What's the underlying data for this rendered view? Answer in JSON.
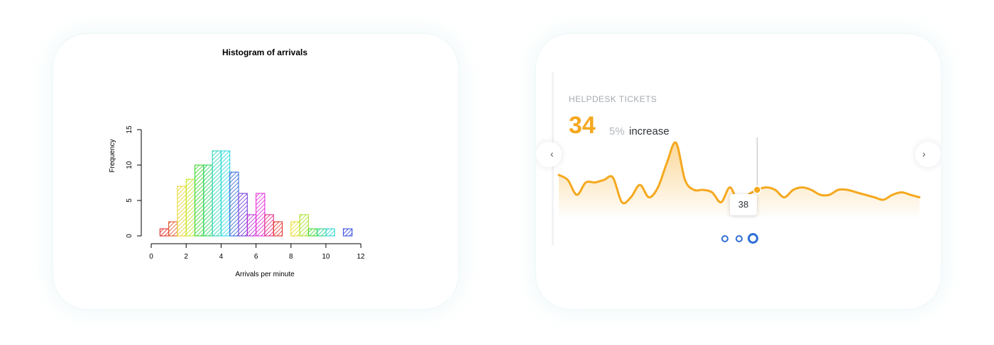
{
  "histogram": {
    "title": "Histogram of arrivals",
    "xlabel": "Arrivals per minute",
    "ylabel": "Frequency",
    "x_ticks": [
      "0",
      "2",
      "4",
      "6",
      "8",
      "10",
      "12"
    ],
    "y_ticks": [
      "0",
      "5",
      "10",
      "15"
    ]
  },
  "widget": {
    "title": "HELPDESK TICKETS",
    "value": "34",
    "change_pct": "5%",
    "change_text": "increase",
    "tooltip_value": "38",
    "pager_count": 3,
    "pager_active_index": 2,
    "accent_color": "#f5a81e"
  },
  "chart_data": [
    {
      "type": "bar",
      "title": "Histogram of arrivals",
      "xlabel": "Arrivals per minute",
      "ylabel": "Frequency",
      "bin_width": 0.5,
      "bins": [
        [
          0.5,
          1.0
        ],
        [
          1.0,
          1.5
        ],
        [
          1.5,
          2.0
        ],
        [
          2.0,
          2.5
        ],
        [
          2.5,
          3.0
        ],
        [
          3.0,
          3.5
        ],
        [
          3.5,
          4.0
        ],
        [
          4.0,
          4.5
        ],
        [
          4.5,
          5.0
        ],
        [
          5.0,
          5.5
        ],
        [
          5.5,
          6.0
        ],
        [
          6.0,
          6.5
        ],
        [
          6.5,
          7.0
        ],
        [
          7.0,
          7.5
        ],
        [
          7.5,
          8.0
        ],
        [
          8.0,
          8.5
        ],
        [
          8.5,
          9.0
        ],
        [
          9.0,
          9.5
        ],
        [
          9.5,
          10.0
        ],
        [
          10.0,
          10.5
        ],
        [
          10.5,
          11.0
        ],
        [
          11.0,
          11.5
        ]
      ],
      "values": [
        1,
        2,
        7,
        8,
        10,
        10,
        12,
        12,
        9,
        6,
        3,
        6,
        3,
        2,
        0,
        2,
        3,
        1,
        1,
        1,
        0,
        1
      ],
      "colors": [
        "#e01b1b",
        "#e0491b",
        "#ecd21e",
        "#bfe51c",
        "#2fd21f",
        "#1fd257",
        "#1fd2b4",
        "#1fd7e0",
        "#2560d8",
        "#6a2cd8",
        "#b51fd2",
        "#e01fd6",
        "#e01f7d",
        "#e02a1f",
        "#e06a1f",
        "#e6da1f",
        "#a6e01f",
        "#33d61f",
        "#1fd27a",
        "#1fd2c9",
        "#1f86e0",
        "#2a3fe0"
      ],
      "fill": "hatched",
      "xlim": [
        0,
        12
      ],
      "ylim": [
        0,
        15
      ],
      "grid": false
    },
    {
      "type": "area",
      "title": "HELPDESK TICKETS",
      "x": [
        0,
        1,
        2,
        3,
        4,
        5,
        6,
        7,
        8,
        9,
        10,
        11,
        12,
        13,
        14,
        15,
        16,
        17,
        18,
        19,
        20,
        21,
        22,
        23,
        24,
        25,
        26,
        27,
        28,
        29,
        30,
        31,
        32,
        33,
        34,
        35,
        36,
        37,
        38,
        39,
        40
      ],
      "values": [
        44,
        42,
        36,
        41,
        41,
        42,
        43,
        33,
        35,
        40,
        35,
        39,
        49,
        57,
        42,
        38,
        38,
        37,
        33,
        39,
        32,
        36,
        38,
        39,
        38,
        35,
        38,
        39,
        38,
        36,
        36,
        38,
        38,
        37,
        36,
        35,
        34,
        36,
        37,
        36,
        35
      ],
      "highlight": {
        "x": 22,
        "value": 38
      },
      "color": "#f5a81e",
      "grid": false
    }
  ]
}
